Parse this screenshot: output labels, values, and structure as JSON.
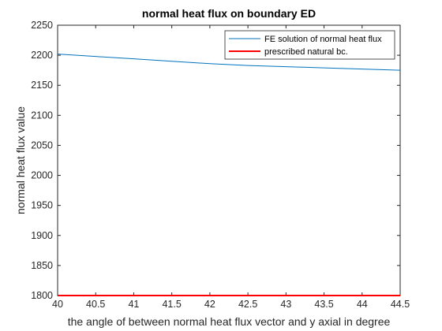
{
  "chart_data": {
    "type": "line",
    "title": "normal heat flux on boundary ED",
    "xlabel": "the angle of between normal heat flux vector and y axial in degree",
    "ylabel": "normal heat flux value",
    "xlim": [
      40,
      44.5
    ],
    "ylim": [
      1800,
      2250
    ],
    "xticks": [
      "40",
      "40.5",
      "41",
      "41.5",
      "42",
      "42.5",
      "43",
      "43.5",
      "44",
      "44.5"
    ],
    "yticks": [
      "1800",
      "1850",
      "1900",
      "1950",
      "2000",
      "2050",
      "2100",
      "2150",
      "2200",
      "2250"
    ],
    "grid": false,
    "legend_position": "top-right",
    "series": [
      {
        "name": "FE solution of normal heat flux",
        "color": "#0072BD",
        "x": [
          40,
          40.5,
          41,
          41.5,
          42,
          42.5,
          43,
          43.5,
          44,
          44.5
        ],
        "y": [
          2202,
          2198,
          2194,
          2190,
          2186,
          2183,
          2181,
          2179,
          2177,
          2175
        ]
      },
      {
        "name": "prescribed natural bc.",
        "color": "#FF0000",
        "x": [
          40,
          44.5
        ],
        "y": [
          1800,
          1800
        ]
      }
    ]
  }
}
